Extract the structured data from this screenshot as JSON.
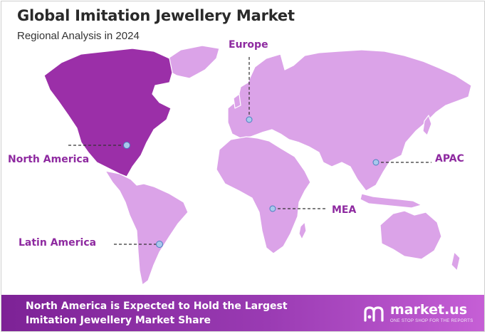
{
  "header": {
    "title": "Global Imitation Jewellery Market",
    "subtitle": "Regional Analysis in 2024"
  },
  "regions": [
    {
      "id": "europe",
      "label": "Europe"
    },
    {
      "id": "north-america",
      "label": "North America",
      "highlighted": true
    },
    {
      "id": "apac",
      "label": "APAC"
    },
    {
      "id": "mea",
      "label": "MEA"
    },
    {
      "id": "latin-america",
      "label": "Latin America"
    }
  ],
  "footer": {
    "headline": "North America is Expected to Hold the Largest Imitation Jewellery Market Share"
  },
  "brand": {
    "name": "market.us",
    "tagline": "ONE STOP SHOP FOR THE REPORTS"
  },
  "colors": {
    "highlight": "#9b2fa8",
    "land": "#dba3e8",
    "label": "#8e2aa0",
    "marker": "#a9c8ec",
    "footer_start": "#7d2296",
    "footer_end": "#c65fd6"
  }
}
